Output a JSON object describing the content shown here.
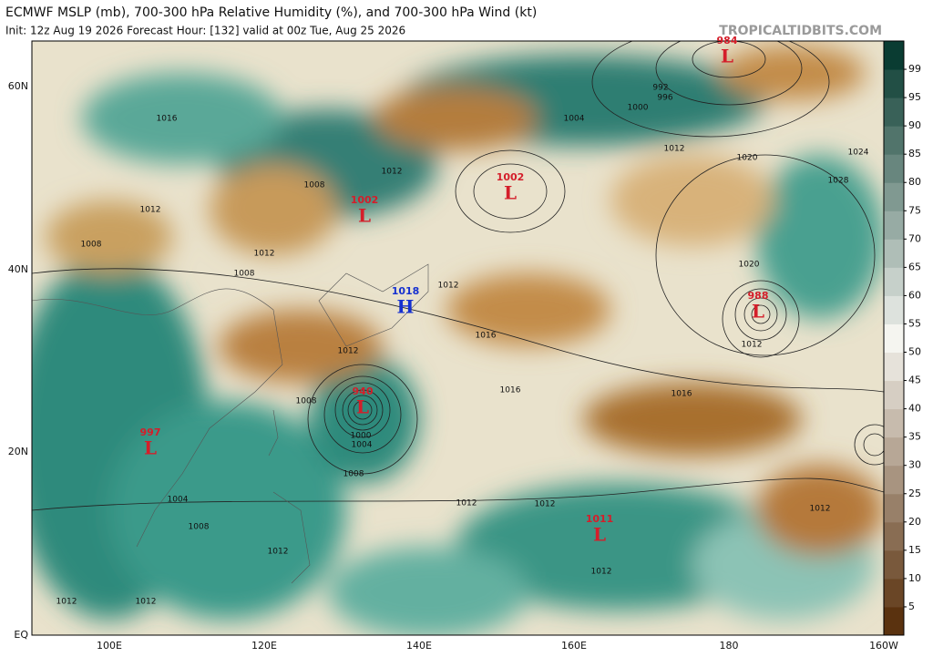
{
  "title": "ECMWF MSLP (mb), 700-300 hPa Relative Humidity (%), and 700-300 hPa Wind (kt)",
  "subtitle": "Init: 12z Aug 19 2026   Forecast Hour: [132]   valid at 00z Tue, Aug 25 2026",
  "watermark": "TROPICALTIDBITS.COM",
  "lat_labels": [
    "60N",
    "40N",
    "20N",
    "EQ"
  ],
  "lon_labels": [
    "100E",
    "120E",
    "140E",
    "160E",
    "180",
    "160W"
  ],
  "colorbar_ticks": [
    5,
    10,
    15,
    20,
    25,
    30,
    35,
    40,
    45,
    50,
    55,
    60,
    65,
    70,
    75,
    80,
    85,
    90,
    95,
    99
  ],
  "pressure_centers": [
    {
      "value": "984",
      "symbol": "L"
    },
    {
      "value": "1002",
      "symbol": "L"
    },
    {
      "value": "1002",
      "symbol": "L"
    },
    {
      "value": "1018",
      "symbol": "H"
    },
    {
      "value": "988",
      "symbol": "L"
    },
    {
      "value": "940",
      "symbol": "L"
    },
    {
      "value": "997",
      "symbol": "L"
    },
    {
      "value": "1011",
      "symbol": "L"
    }
  ],
  "isobar_labels": [
    "1016",
    "1012",
    "1008",
    "1012",
    "1008",
    "1012",
    "1008",
    "1004",
    "1000",
    "996",
    "992",
    "1012",
    "1020",
    "1024",
    "1028",
    "1020",
    "1012",
    "1016",
    "1016",
    "1016",
    "1012",
    "1008",
    "1004",
    "1000",
    "1008",
    "1012",
    "1012",
    "1012",
    "1012",
    "1004",
    "1008",
    "1012",
    "1012",
    "1012",
    "1012"
  ]
}
